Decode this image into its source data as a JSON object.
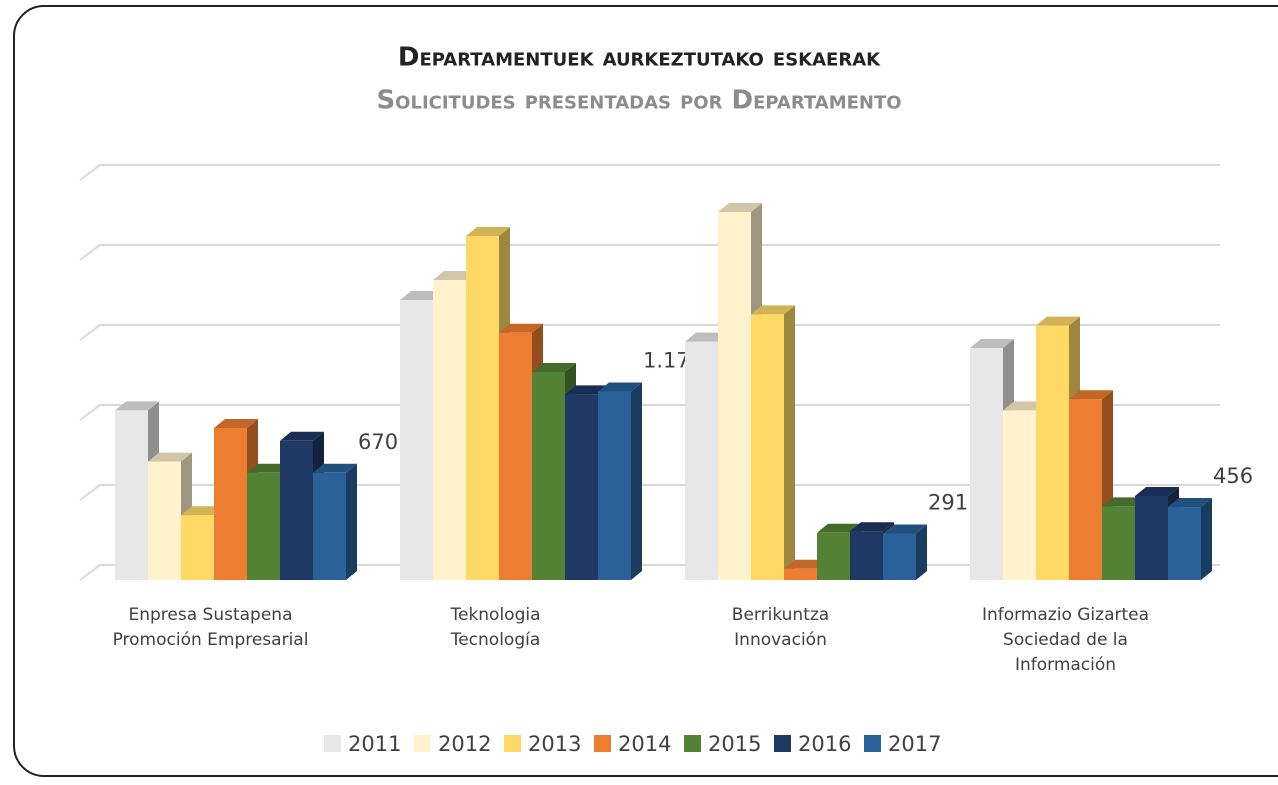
{
  "chart_data": {
    "type": "bar3d",
    "title": "Departamentuek aurkeztutako eskaerak",
    "subtitle": "Solicitudes presentadas por Departamento",
    "categories": [
      "Enpresa Sustapena\nPromoción Empresarial",
      "Teknologia\nTecnología",
      "Berrikuntza\nInnovación",
      "Informazio Gizartea\nSociedad de la\nInformación"
    ],
    "series": [
      {
        "name": "2011",
        "color": "#e7e7e7",
        "values": [
          1060,
          1750,
          1490,
          1450
        ]
      },
      {
        "name": "2012",
        "color": "#fff2cc",
        "values": [
          740,
          1875,
          2300,
          1060
        ]
      },
      {
        "name": "2013",
        "color": "#ffd966",
        "values": [
          405,
          2150,
          1660,
          1590
        ]
      },
      {
        "name": "2014",
        "color": "#ed7d31",
        "values": [
          950,
          1545,
          70,
          1130
        ]
      },
      {
        "name": "2015",
        "color": "#548235",
        "values": [
          670,
          1300,
          295,
          460
        ]
      },
      {
        "name": "2016",
        "color": "#1f3864",
        "values": [
          870,
          1160,
          305,
          525
        ]
      },
      {
        "name": "2017",
        "color": "#2a619a",
        "values": [
          670,
          1178,
          291,
          456
        ],
        "value_labels": [
          "670",
          "1.178",
          "291",
          "456"
        ]
      }
    ],
    "ylim": [
      0,
      2500
    ],
    "yticks": [
      0,
      500,
      1000,
      1500,
      2000,
      2500
    ],
    "grid": true,
    "legend": "bottom"
  }
}
